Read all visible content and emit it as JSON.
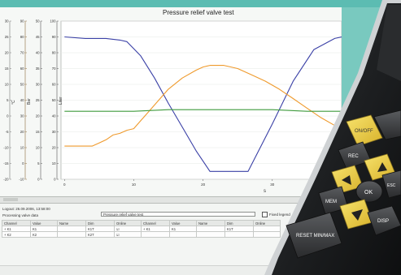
{
  "chart_data": {
    "type": "line",
    "title": "Pressure relief valve test",
    "xlabel": "s",
    "x_ticks": [
      "0",
      "10",
      "20",
      "30"
    ],
    "xlim": [
      -0.5,
      40
    ],
    "axes": [
      {
        "label": "°C",
        "ticks": [
          "30",
          "25",
          "20",
          "15",
          "10",
          "5",
          "0",
          "-5",
          "-10",
          "-15",
          "-20"
        ],
        "lim": [
          -20,
          30
        ]
      },
      {
        "label": "Bar",
        "ticks": [
          "90",
          "80",
          "70",
          "60",
          "50",
          "40",
          "30",
          "20",
          "10",
          "0",
          "-10"
        ],
        "lim": [
          -10,
          90
        ]
      },
      {
        "label": "",
        "ticks": [
          "50",
          "45",
          "40",
          "35",
          "30",
          "25",
          "20",
          "15",
          "10",
          "5",
          "0"
        ],
        "lim": [
          0,
          50
        ]
      },
      {
        "label": "Liter",
        "ticks": [
          "100",
          "90",
          "80",
          "70",
          "60",
          "50",
          "40",
          "30",
          "20",
          "10",
          "0"
        ],
        "lim": [
          0,
          100
        ]
      }
    ],
    "series": [
      {
        "color": "#3a40a6",
        "x": [
          0,
          3,
          6,
          8,
          9,
          11,
          13,
          15,
          17,
          19,
          21,
          23,
          25,
          26.5,
          26.5,
          30,
          33,
          36,
          39,
          40
        ],
        "y": [
          90,
          89,
          89,
          88,
          87,
          78,
          64,
          48,
          33,
          18,
          5,
          5,
          5,
          5,
          5,
          35,
          62,
          82,
          89,
          90
        ]
      },
      {
        "color": "#ef9a2c",
        "x": [
          0,
          2,
          4,
          5,
          6,
          7,
          8,
          9,
          10,
          11,
          12,
          13,
          14,
          15,
          17,
          19,
          20,
          21,
          23,
          25,
          27,
          29,
          31,
          33,
          35,
          37,
          39
        ],
        "y": [
          21,
          21,
          21,
          23,
          25,
          28,
          29,
          31,
          32,
          37,
          42,
          47,
          52,
          57,
          64,
          69,
          71,
          72,
          72,
          70,
          66,
          62,
          57,
          51,
          45,
          39,
          34
        ]
      },
      {
        "color": "#3e9a3c",
        "x": [
          0,
          5,
          10,
          15,
          20,
          25,
          30,
          35,
          40
        ],
        "y": [
          43,
          43,
          43,
          44,
          44,
          44,
          44,
          43,
          43
        ]
      }
    ]
  },
  "lower_panel": {
    "legend": "Logout: 26.09.2006, 13:58:00",
    "section": "Processing valve data",
    "series_field": "Pressure relief valve test",
    "checkbox_label": "Fixed legend",
    "headers": [
      "Channel",
      "Value",
      "Name",
      "Dim",
      "Online",
      "Channel",
      "Value",
      "Name",
      "Dim",
      "Online"
    ],
    "rows": [
      [
        "+ K1",
        "K1",
        "",
        "K1T",
        "",
        "+ K1",
        "K1",
        "",
        "K1T",
        ""
      ],
      [
        "+ K2",
        "K2",
        "",
        "K2T",
        "",
        "",
        "",
        "",
        "",
        ""
      ]
    ]
  },
  "device": {
    "buttons": [
      {
        "name": "on-off",
        "label": "ON/OFF"
      },
      {
        "name": "rec",
        "label": "REC"
      },
      {
        "name": "mem",
        "label": "MEM"
      },
      {
        "name": "ok",
        "label": "OK"
      },
      {
        "name": "esc",
        "label": "ESC"
      },
      {
        "name": "disp",
        "label": "DISP"
      },
      {
        "name": "reset",
        "label": "RESET MIN/MAX"
      }
    ]
  }
}
